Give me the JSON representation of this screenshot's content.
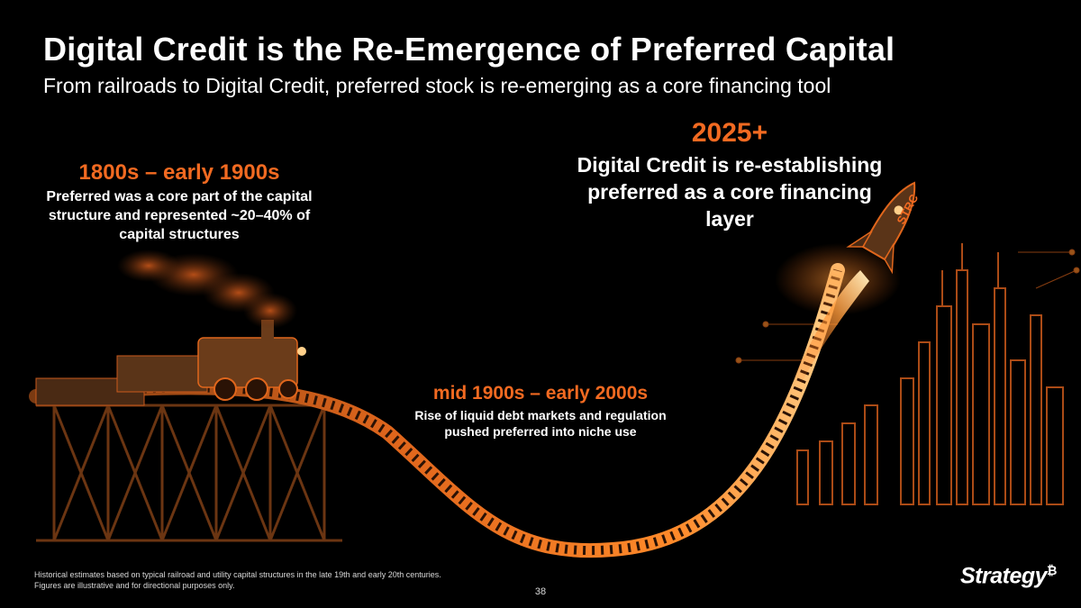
{
  "header": {
    "title": "Digital Credit is the Re-Emergence of Preferred Capital",
    "subtitle": "From railroads to Digital Credit, preferred stock is re-emerging as a core financing tool"
  },
  "eras": {
    "early": {
      "heading": "1800s – early 1900s",
      "body": "Preferred was a core part of the capital structure and represented ~20–40% of capital structures"
    },
    "mid": {
      "heading": "mid 1900s – early 2000s",
      "body": "Rise of liquid debt markets and regulation pushed preferred into niche use"
    },
    "future": {
      "heading": "2025+",
      "body": "Digital Credit is re-establishing preferred as a core financing layer"
    }
  },
  "rocket": {
    "label": "STRC"
  },
  "footer": {
    "footnote": "Historical estimates based on typical railroad and utility capital structures in the late 19th and early 20th centuries. Figures are illustrative and for directional purposes only.",
    "page_number": "38",
    "logo_text": "Strategy",
    "logo_mark": "₿"
  },
  "colors": {
    "background": "#000000",
    "accent_orange": "#f26a21",
    "glow": "#ff8a2a",
    "text": "#ffffff"
  },
  "icons": {
    "train": "steam-locomotive-illustration",
    "rocket": "rocket-illustration",
    "city": "city-skyline-illustration"
  }
}
